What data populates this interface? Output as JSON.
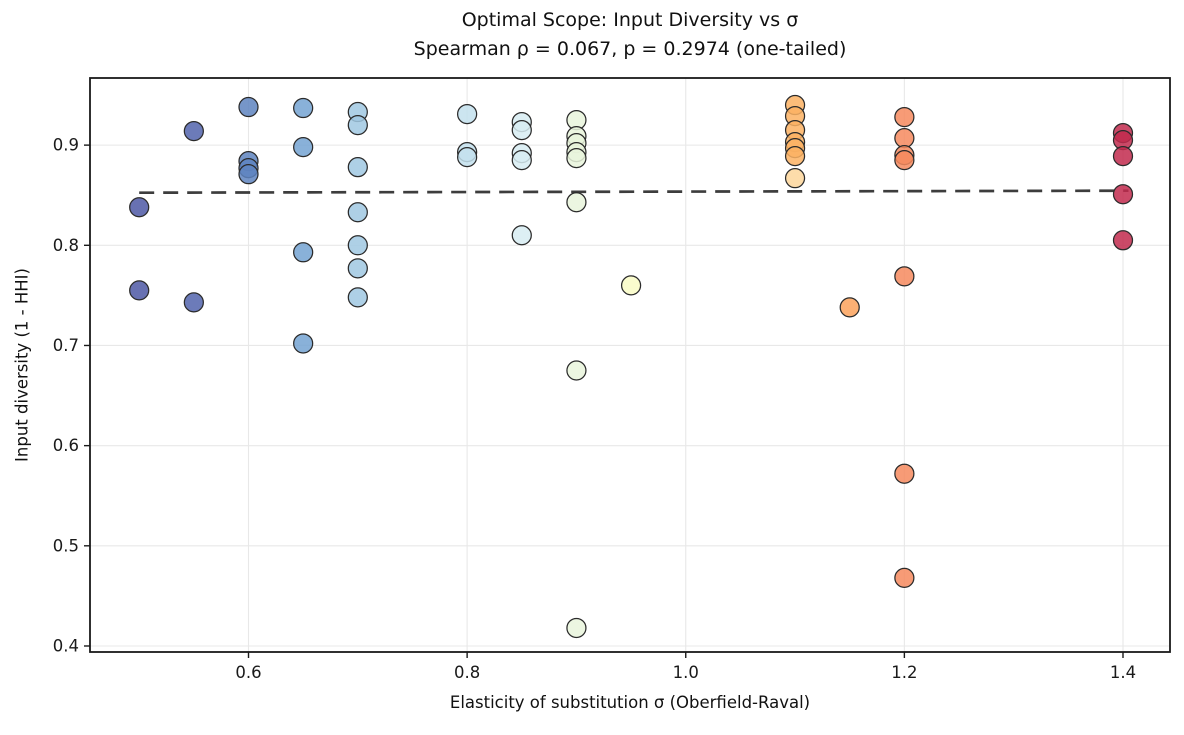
{
  "figure": {
    "background": "#ffffff",
    "title_line1": "Optimal Scope: Input Diversity vs σ",
    "title_line2": "Spearman ρ = 0.067, p = 0.2974 (one-tailed)"
  },
  "chart_data": {
    "type": "scatter",
    "title": "Optimal Scope: Input Diversity vs σ",
    "subtitle": "Spearman ρ = 0.067, p = 0.2974 (one-tailed)",
    "xlabel": "Elasticity of substitution σ (Oberfield-Raval)",
    "ylabel": "Input diversity (1 - HHI)",
    "xlim": [
      0.455,
      1.443
    ],
    "ylim": [
      0.394,
      0.967
    ],
    "xticks": [
      "0.6",
      "0.8",
      "1.0",
      "1.2",
      "1.4"
    ],
    "yticks": [
      "0.4",
      "0.5",
      "0.6",
      "0.7",
      "0.8",
      "0.9"
    ],
    "grid": true,
    "grid_color": "#e8e8e8",
    "spine_color": "#1a1a1a",
    "tick_label_color": "#1a1a1a",
    "marker": {
      "radius": 9.5,
      "opacity": 0.85,
      "edge_color": "#2b2b2b"
    },
    "trend_line": {
      "style": "dashed",
      "color": "#3d3d3d",
      "x": [
        0.5,
        1.405
      ],
      "y": [
        0.8525,
        0.8545
      ]
    },
    "points": [
      {
        "sigma": 0.5,
        "diversity": 0.838,
        "color": "#4d58a5"
      },
      {
        "sigma": 0.5,
        "diversity": 0.755,
        "color": "#4d58a5"
      },
      {
        "sigma": 0.55,
        "diversity": 0.914,
        "color": "#5264ad"
      },
      {
        "sigma": 0.55,
        "diversity": 0.743,
        "color": "#5264ad"
      },
      {
        "sigma": 0.6,
        "diversity": 0.938,
        "color": "#5e84bf"
      },
      {
        "sigma": 0.6,
        "diversity": 0.884,
        "color": "#5e84bf"
      },
      {
        "sigma": 0.6,
        "diversity": 0.877,
        "color": "#5e84bf"
      },
      {
        "sigma": 0.6,
        "diversity": 0.871,
        "color": "#5e84bf"
      },
      {
        "sigma": 0.65,
        "diversity": 0.937,
        "color": "#74a3d2"
      },
      {
        "sigma": 0.65,
        "diversity": 0.898,
        "color": "#74a3d2"
      },
      {
        "sigma": 0.65,
        "diversity": 0.793,
        "color": "#74a3d2"
      },
      {
        "sigma": 0.65,
        "diversity": 0.702,
        "color": "#74a3d2"
      },
      {
        "sigma": 0.7,
        "diversity": 0.933,
        "color": "#a0c8e2"
      },
      {
        "sigma": 0.7,
        "diversity": 0.92,
        "color": "#a0c8e2"
      },
      {
        "sigma": 0.7,
        "diversity": 0.878,
        "color": "#a0c8e2"
      },
      {
        "sigma": 0.7,
        "diversity": 0.833,
        "color": "#a0c8e2"
      },
      {
        "sigma": 0.7,
        "diversity": 0.8,
        "color": "#a0c8e2"
      },
      {
        "sigma": 0.7,
        "diversity": 0.777,
        "color": "#a0c8e2"
      },
      {
        "sigma": 0.7,
        "diversity": 0.748,
        "color": "#a0c8e2"
      },
      {
        "sigma": 0.8,
        "diversity": 0.931,
        "color": "#c3e1ed"
      },
      {
        "sigma": 0.8,
        "diversity": 0.893,
        "color": "#c3e1ed"
      },
      {
        "sigma": 0.8,
        "diversity": 0.888,
        "color": "#c3e1ed"
      },
      {
        "sigma": 0.85,
        "diversity": 0.923,
        "color": "#d7ecf2"
      },
      {
        "sigma": 0.85,
        "diversity": 0.915,
        "color": "#d7ecf2"
      },
      {
        "sigma": 0.85,
        "diversity": 0.892,
        "color": "#d7ecf2"
      },
      {
        "sigma": 0.85,
        "diversity": 0.885,
        "color": "#d7ecf2"
      },
      {
        "sigma": 0.85,
        "diversity": 0.81,
        "color": "#d7ecf2"
      },
      {
        "sigma": 0.9,
        "diversity": 0.925,
        "color": "#e9f5dc"
      },
      {
        "sigma": 0.9,
        "diversity": 0.909,
        "color": "#e9f5dc"
      },
      {
        "sigma": 0.9,
        "diversity": 0.902,
        "color": "#e9f5dc"
      },
      {
        "sigma": 0.9,
        "diversity": 0.893,
        "color": "#e9f5dc"
      },
      {
        "sigma": 0.9,
        "diversity": 0.887,
        "color": "#e9f5dc"
      },
      {
        "sigma": 0.9,
        "diversity": 0.843,
        "color": "#e9f5dc"
      },
      {
        "sigma": 0.9,
        "diversity": 0.675,
        "color": "#e9f5dc"
      },
      {
        "sigma": 0.9,
        "diversity": 0.418,
        "color": "#e9f5dc"
      },
      {
        "sigma": 0.95,
        "diversity": 0.76,
        "color": "#f9fbc6"
      },
      {
        "sigma": 1.1,
        "diversity": 0.94,
        "color": "#fbb163"
      },
      {
        "sigma": 1.1,
        "diversity": 0.929,
        "color": "#fbb163"
      },
      {
        "sigma": 1.1,
        "diversity": 0.915,
        "color": "#fbb163"
      },
      {
        "sigma": 1.1,
        "diversity": 0.903,
        "color": "#fbb163"
      },
      {
        "sigma": 1.1,
        "diversity": 0.897,
        "color": "#fbb163"
      },
      {
        "sigma": 1.1,
        "diversity": 0.889,
        "color": "#fbb163"
      },
      {
        "sigma": 1.1,
        "diversity": 0.867,
        "color": "#fdd69b"
      },
      {
        "sigma": 1.15,
        "diversity": 0.738,
        "color": "#fba25c"
      },
      {
        "sigma": 1.2,
        "diversity": 0.928,
        "color": "#f6895e"
      },
      {
        "sigma": 1.2,
        "diversity": 0.907,
        "color": "#f6895e"
      },
      {
        "sigma": 1.2,
        "diversity": 0.89,
        "color": "#f6895e"
      },
      {
        "sigma": 1.2,
        "diversity": 0.885,
        "color": "#f6895e"
      },
      {
        "sigma": 1.2,
        "diversity": 0.769,
        "color": "#f6895e"
      },
      {
        "sigma": 1.2,
        "diversity": 0.572,
        "color": "#f6895e"
      },
      {
        "sigma": 1.2,
        "diversity": 0.468,
        "color": "#f6895e"
      },
      {
        "sigma": 1.4,
        "diversity": 0.912,
        "color": "#c22a4e"
      },
      {
        "sigma": 1.4,
        "diversity": 0.905,
        "color": "#c22a4e"
      },
      {
        "sigma": 1.4,
        "diversity": 0.889,
        "color": "#c22a4e"
      },
      {
        "sigma": 1.4,
        "diversity": 0.851,
        "color": "#c22a4e"
      },
      {
        "sigma": 1.4,
        "diversity": 0.805,
        "color": "#c22a4e"
      }
    ]
  }
}
